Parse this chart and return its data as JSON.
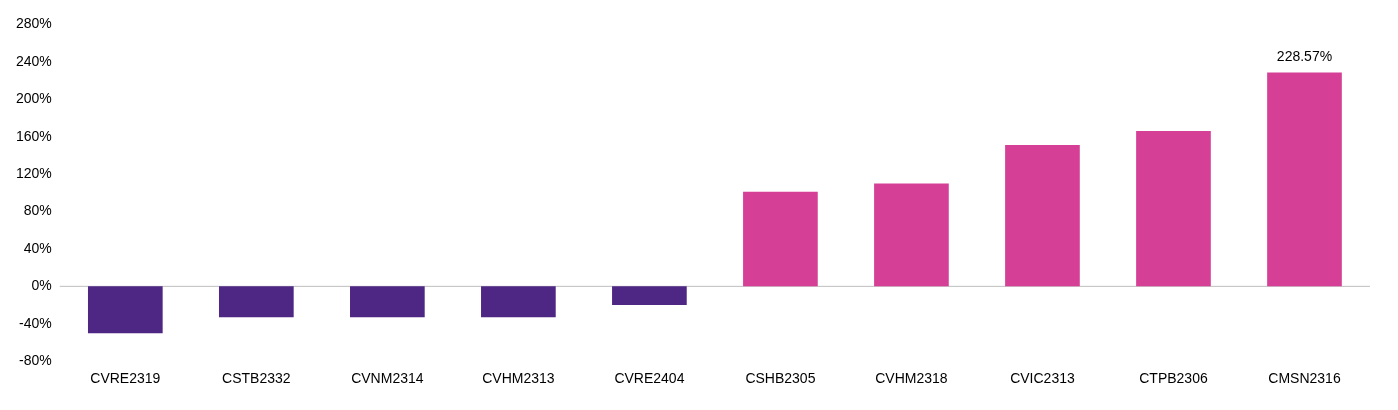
{
  "chart_data": {
    "type": "bar",
    "categories": [
      "CVRE2319",
      "CSTB2332",
      "CVNM2314",
      "CVHM2313",
      "CVRE2404",
      "CSHB2305",
      "CVHM2318",
      "CVIC2313",
      "CTPB2306",
      "CMSN2316"
    ],
    "values": [
      -50,
      -33,
      -33,
      -33,
      -20,
      101,
      110,
      151,
      166,
      228.57
    ],
    "colors": [
      "#4e2683",
      "#4e2683",
      "#4e2683",
      "#4e2683",
      "#4e2683",
      "#d63f96",
      "#d63f96",
      "#d63f96",
      "#d63f96",
      "#d63f96"
    ],
    "value_labels": [
      null,
      null,
      null,
      null,
      null,
      null,
      null,
      null,
      null,
      "228.57%"
    ],
    "ylim": [
      -80,
      280
    ],
    "yticks": [
      {
        "value": -80,
        "label": "-80%"
      },
      {
        "value": -40,
        "label": "-40%"
      },
      {
        "value": 0,
        "label": "0%"
      },
      {
        "value": 40,
        "label": "40%"
      },
      {
        "value": 80,
        "label": "80%"
      },
      {
        "value": 120,
        "label": "120%"
      },
      {
        "value": 160,
        "label": "160%"
      },
      {
        "value": 200,
        "label": "200%"
      },
      {
        "value": 240,
        "label": "240%"
      },
      {
        "value": 280,
        "label": "280%"
      }
    ],
    "ref_lines": [
      {
        "axis": "y",
        "value": 0,
        "color": "#bfbfbf"
      }
    ],
    "grid": false,
    "legend": false
  }
}
